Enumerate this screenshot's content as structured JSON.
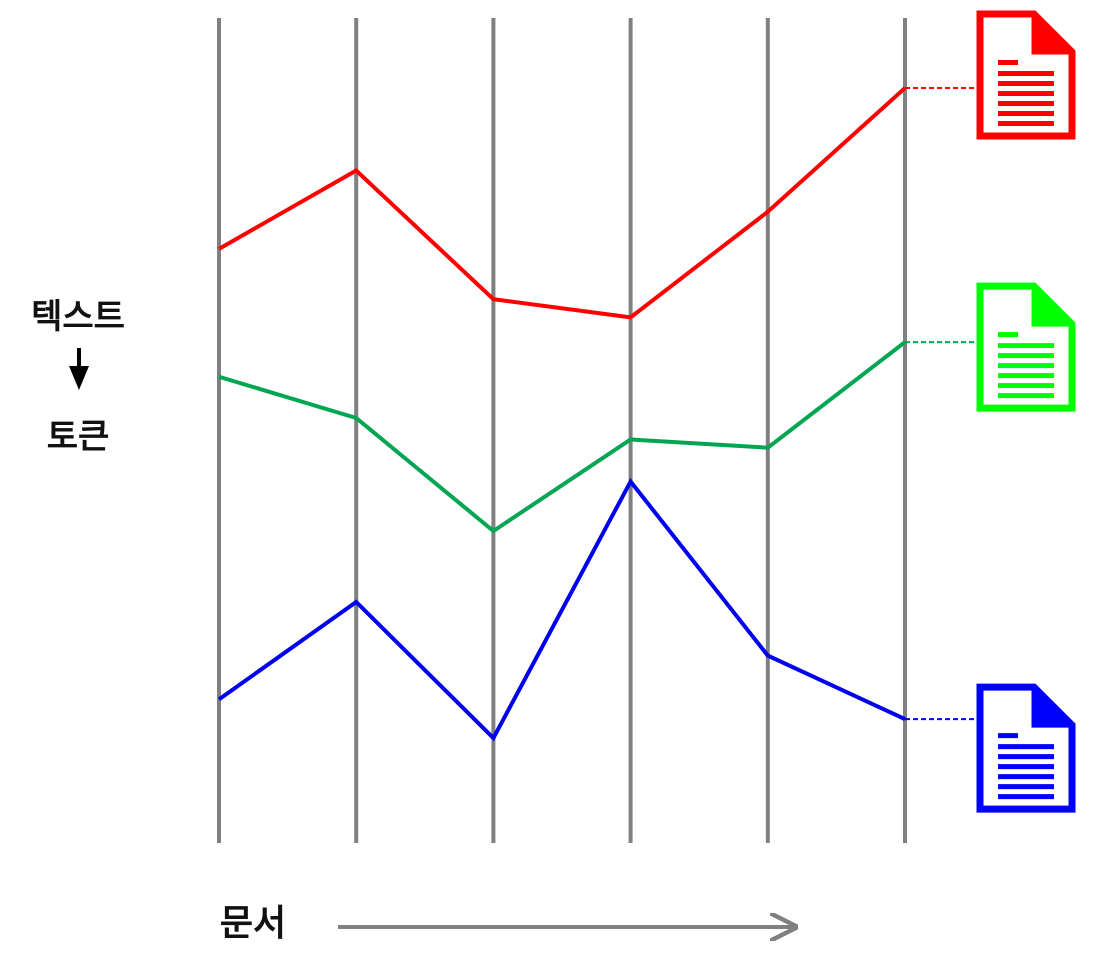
{
  "labels": {
    "text": "텍스트",
    "token": "토큰",
    "document": "문서"
  },
  "colors": {
    "axis": "#808080",
    "arrow": "#000000",
    "doc_arrow": "#808080"
  },
  "icons": [
    "document-icon",
    "document-icon",
    "document-icon"
  ],
  "series": [
    {
      "color": "#ff0000",
      "icon_color": "#ff0000",
      "values": [
        0.725,
        0.82,
        0.664,
        0.642,
        0.77,
        0.92
      ]
    },
    {
      "color": "#00a651",
      "icon_color": "#00ff00",
      "values": [
        0.57,
        0.52,
        0.383,
        0.494,
        0.484,
        0.612
      ]
    },
    {
      "color": "#0000ee",
      "icon_color": "#0000ff",
      "values": [
        0.179,
        0.297,
        0.132,
        0.443,
        0.232,
        0.155
      ]
    }
  ]
}
